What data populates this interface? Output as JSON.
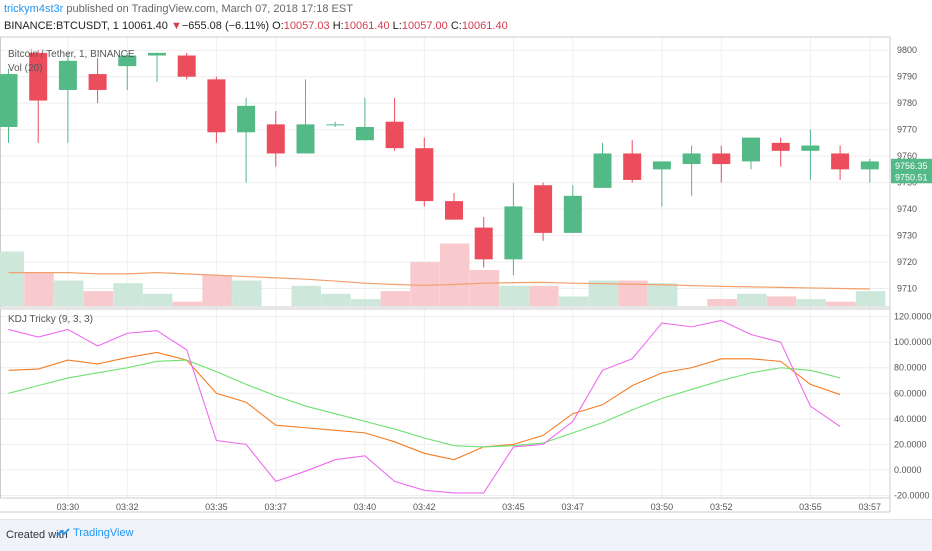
{
  "header": {
    "author": "trickym4st3r",
    "published": " published on TradingView.com, March 07, 2018 17:18 EST",
    "symbol": "BINANCE:BTCUSDT, 1",
    "last": "10061.40",
    "change": "−655.08 (−6.11%)",
    "o_label": "O:",
    "o": "10057.03",
    "h_label": "H:",
    "h": "10061.40",
    "l_label": "L:",
    "l": "10057.00",
    "c_label": "C:",
    "c": "10061.40"
  },
  "footer": {
    "created": "Created with",
    "brand": "TradingView"
  },
  "colors": {
    "up": "#53b987",
    "down": "#eb4d5c",
    "vol_up": "#cde8db",
    "vol_down": "#f8c9cd",
    "vol_ma": "#f2a06b",
    "k": "#f57c23",
    "d": "#6fe06f",
    "j": "#ee6bee",
    "grid": "#eeeeee",
    "axis": "#cccccc"
  },
  "chart_data": {
    "type": "candlestick",
    "main": {
      "legend": [
        "Bitcoin / Tether, 1, BINANCE",
        "Vol (20)"
      ],
      "ylim": [
        9703,
        9805
      ],
      "yticks": [
        9710,
        9720,
        9730,
        9740,
        9750,
        9760,
        9770,
        9780,
        9790,
        9800
      ],
      "price_labels": [
        {
          "value": "9756.35",
          "y": 9756.35,
          "color": "#53b987"
        },
        {
          "value": "9750.51",
          "y": 9752,
          "color": "#53b987"
        }
      ],
      "candles": [
        {
          "o": 9771,
          "h": 9793,
          "l": 9765,
          "c": 9791
        },
        {
          "o": 9799,
          "h": 9800,
          "l": 9765,
          "c": 9781
        },
        {
          "o": 9785,
          "h": 9799,
          "l": 9765,
          "c": 9796
        },
        {
          "o": 9791,
          "h": 9797,
          "l": 9780,
          "c": 9785
        },
        {
          "o": 9794,
          "h": 9799,
          "l": 9785,
          "c": 9798
        },
        {
          "o": 9798,
          "h": 9799,
          "l": 9788,
          "c": 9799
        },
        {
          "o": 9798,
          "h": 9799,
          "l": 9789,
          "c": 9790
        },
        {
          "o": 9789,
          "h": 9790,
          "l": 9765,
          "c": 9769
        },
        {
          "o": 9769,
          "h": 9782,
          "l": 9750,
          "c": 9779
        },
        {
          "o": 9772,
          "h": 9777,
          "l": 9756,
          "c": 9761
        },
        {
          "o": 9761,
          "h": 9789,
          "l": 9761,
          "c": 9772
        },
        {
          "o": 9772,
          "h": 9773,
          "l": 9771,
          "c": 9772
        },
        {
          "o": 9766,
          "h": 9782,
          "l": 9766,
          "c": 9771
        },
        {
          "o": 9773,
          "h": 9782,
          "l": 9762,
          "c": 9763
        },
        {
          "o": 9763,
          "h": 9767,
          "l": 9741,
          "c": 9743
        },
        {
          "o": 9743,
          "h": 9746,
          "l": 9736,
          "c": 9736
        },
        {
          "o": 9733,
          "h": 9737,
          "l": 9718,
          "c": 9721
        },
        {
          "o": 9721,
          "h": 9750,
          "l": 9715,
          "c": 9741
        },
        {
          "o": 9749,
          "h": 9750,
          "l": 9728,
          "c": 9731
        },
        {
          "o": 9731,
          "h": 9749,
          "l": 9731,
          "c": 9745
        },
        {
          "o": 9748,
          "h": 9765,
          "l": 9748,
          "c": 9761
        },
        {
          "o": 9761,
          "h": 9766,
          "l": 9750,
          "c": 9751
        },
        {
          "o": 9755,
          "h": 9758,
          "l": 9741,
          "c": 9758
        },
        {
          "o": 9757,
          "h": 9764,
          "l": 9745,
          "c": 9761
        },
        {
          "o": 9761,
          "h": 9764,
          "l": 9750,
          "c": 9757
        },
        {
          "o": 9758,
          "h": 9767,
          "l": 9755,
          "c": 9767
        },
        {
          "o": 9765,
          "h": 9767,
          "l": 9756,
          "c": 9762
        },
        {
          "o": 9762,
          "h": 9770,
          "l": 9751,
          "c": 9764
        },
        {
          "o": 9761,
          "h": 9764,
          "l": 9751,
          "c": 9755
        },
        {
          "o": 9755,
          "h": 9759,
          "l": 9750,
          "c": 9758
        }
      ],
      "volume": [
        9724,
        9716,
        9713,
        9709,
        9712,
        9708,
        9705,
        9715,
        9713,
        9702,
        9711,
        9708,
        9706,
        9709,
        9720,
        9727,
        9717,
        9711,
        9711,
        9707,
        9713,
        9713,
        9712,
        9703,
        9706,
        9708,
        9707,
        9706,
        9705,
        9709
      ],
      "volume_ma": [
        9716,
        9716,
        9716,
        9715.5,
        9715.5,
        9716,
        9715.5,
        9715,
        9714.5,
        9714,
        9713.5,
        9712.8,
        9712,
        9711.5,
        9711.2,
        9711.5,
        9712,
        9712.2,
        9712.3,
        9712,
        9711.8,
        9711.6,
        9711.4,
        9711.1,
        9710.8,
        9710.6,
        9710.4,
        9710.2,
        9710,
        9709.8
      ]
    },
    "kdj": {
      "legend": "KDJ Tricky (9, 3, 3)",
      "ylim": [
        -22,
        126
      ],
      "yticks": [
        -20,
        0,
        20,
        40,
        60,
        80,
        100,
        120
      ],
      "ytick_labels": [
        "-20.0000",
        "0.0000",
        "20.0000",
        "40.0000",
        "60.0000",
        "80.0000",
        "100.0000",
        "120.0000"
      ],
      "series": [
        {
          "id": "k",
          "values": [
            78,
            79,
            86,
            83,
            88,
            92,
            86,
            60,
            53,
            35,
            33,
            31,
            29,
            22,
            13,
            8,
            18,
            20,
            27,
            44,
            51,
            66,
            76,
            80,
            87,
            87,
            85,
            67,
            59,
            null
          ]
        },
        {
          "id": "d",
          "values": [
            60,
            66,
            72,
            76,
            80,
            85,
            86,
            77,
            67,
            58,
            50,
            44,
            38,
            32,
            25,
            19,
            18,
            19,
            21,
            29,
            37,
            47,
            56,
            63,
            70,
            76,
            80,
            78,
            72,
            null
          ]
        },
        {
          "id": "j",
          "values": [
            110,
            104,
            110,
            97,
            107,
            109,
            94,
            23,
            20,
            -9,
            -1,
            8,
            11,
            -9,
            -16,
            -18,
            -18,
            18,
            20,
            38,
            78,
            87,
            115,
            112,
            117,
            106,
            100,
            50,
            34,
            null
          ]
        }
      ]
    },
    "xticks": [
      {
        "label": "03:30",
        "i": 2
      },
      {
        "label": "03:32",
        "i": 4
      },
      {
        "label": "03:35",
        "i": 7
      },
      {
        "label": "03:37",
        "i": 9
      },
      {
        "label": "03:40",
        "i": 12
      },
      {
        "label": "03:42",
        "i": 14
      },
      {
        "label": "03:45",
        "i": 17
      },
      {
        "label": "03:47",
        "i": 19
      },
      {
        "label": "03:50",
        "i": 22
      },
      {
        "label": "03:52",
        "i": 24
      },
      {
        "label": "03:55",
        "i": 27
      },
      {
        "label": "03:57",
        "i": 29
      }
    ]
  }
}
